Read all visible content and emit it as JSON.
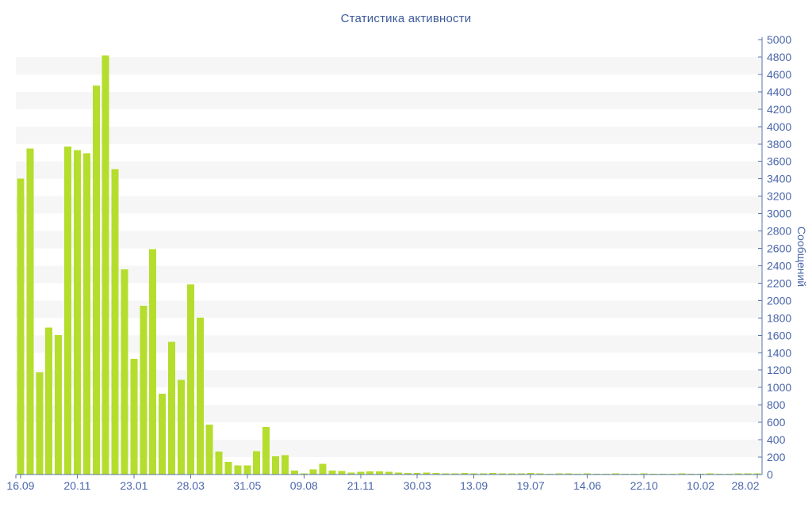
{
  "page": {
    "background": "#ffffff"
  },
  "chart_data": {
    "type": "bar",
    "title": "Статистика активности",
    "ylabel": "Сообщений",
    "xlabel": "",
    "ylim": [
      0,
      5000
    ],
    "y_tick_step": 200,
    "y_ticks": [
      0,
      200,
      400,
      600,
      800,
      1000,
      1200,
      1400,
      1600,
      1800,
      2000,
      2200,
      2400,
      2600,
      2800,
      3000,
      3200,
      3400,
      3600,
      3800,
      4000,
      4200,
      4400,
      4600,
      4800,
      5000
    ],
    "grid": "alternating-horizontal-bands",
    "legend": "none",
    "x_tick_labels": [
      "16.09",
      "20.11",
      "23.01",
      "28.03",
      "31.05",
      "09.08",
      "21.11",
      "30.03",
      "13.09",
      "19.07",
      "14.06",
      "22.10",
      "10.02",
      "28.02"
    ],
    "x_label_every_n_bars": 6,
    "values": [
      3400,
      3750,
      1175,
      1690,
      1605,
      3770,
      3730,
      3695,
      4470,
      4820,
      3510,
      2360,
      1330,
      1940,
      2590,
      930,
      1525,
      1090,
      2185,
      1805,
      575,
      265,
      145,
      105,
      105,
      270,
      545,
      210,
      225,
      45,
      15,
      60,
      125,
      45,
      40,
      25,
      30,
      35,
      35,
      30,
      25,
      20,
      20,
      25,
      20,
      15,
      15,
      20,
      15,
      15,
      20,
      15,
      15,
      15,
      20,
      15,
      10,
      15,
      15,
      10,
      15,
      10,
      10,
      15,
      10,
      10,
      15,
      10,
      10,
      10,
      15,
      10,
      10,
      15,
      10,
      10,
      15,
      15,
      15
    ],
    "colors": {
      "bar": "#b5dd2d",
      "band": "#f6f6f6",
      "axis": "#5b74ad",
      "tick_label": "#4a66aa",
      "title": "#3c5a99"
    }
  }
}
